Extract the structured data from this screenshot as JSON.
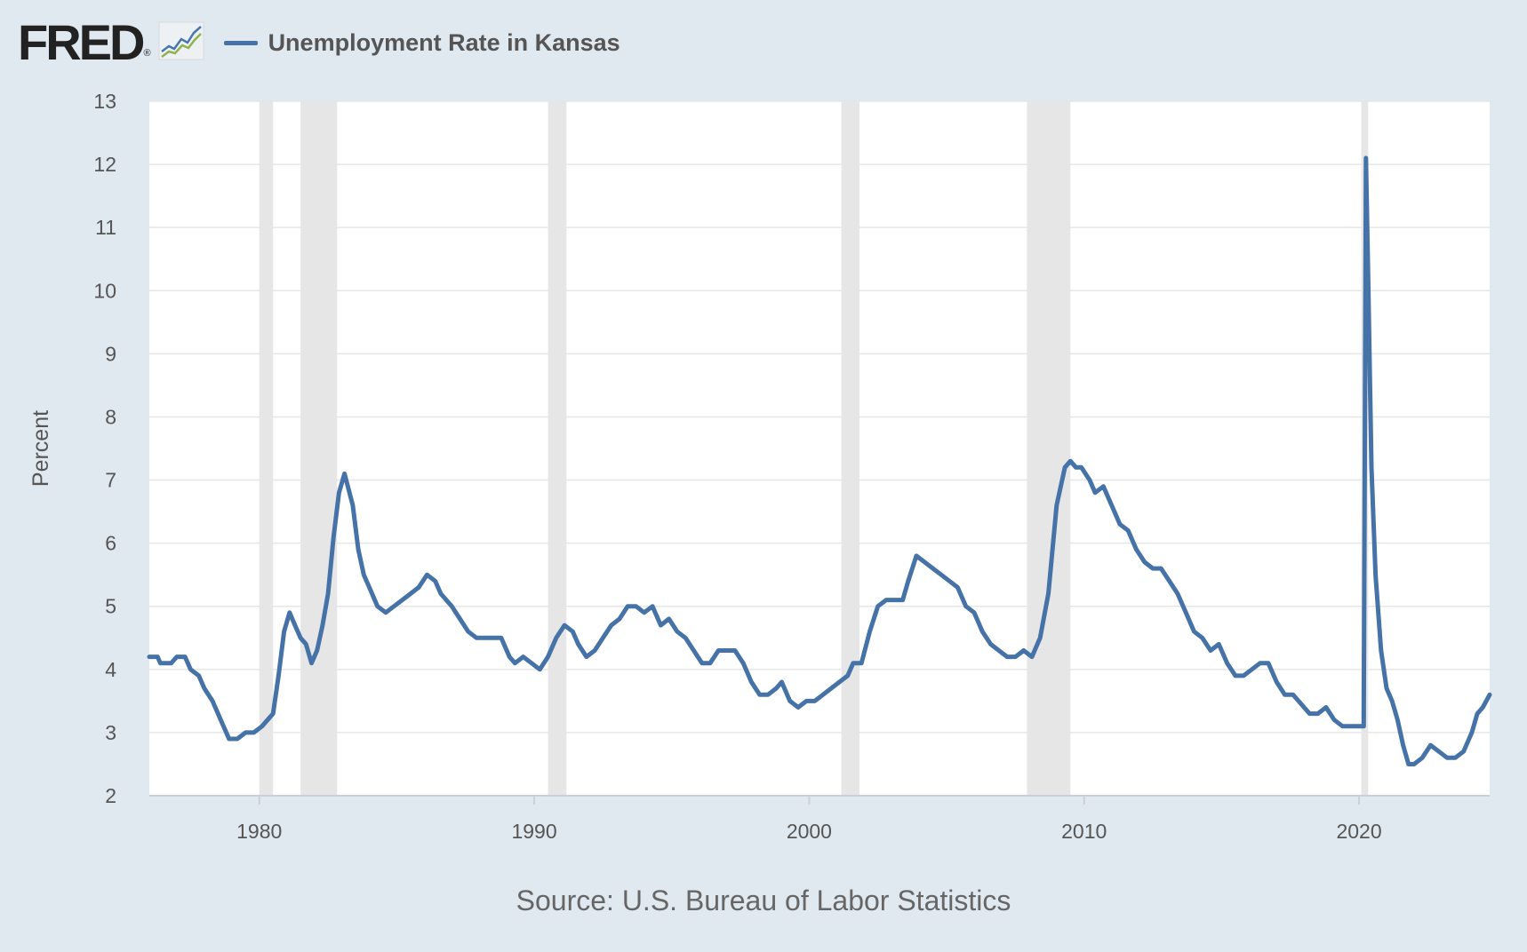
{
  "header": {
    "logo_text": "FRED",
    "logo_mark": "®",
    "logo_icon": "line-chart-icon",
    "legend_label": "Unemployment Rate in Kansas"
  },
  "source": "Source: U.S. Bureau of Labor Statistics",
  "colors": {
    "series": "#4572a7",
    "background": "#e1e9f0",
    "plot": "#ffffff",
    "recession": "#e6e6e6",
    "grid": "#e6e6e6"
  },
  "chart_data": {
    "type": "line",
    "title": "",
    "xlabel": "",
    "ylabel": "Percent",
    "xlim": [
      1976.0,
      2024.75
    ],
    "ylim": [
      2,
      13
    ],
    "yticks": [
      2,
      3,
      4,
      5,
      6,
      7,
      8,
      9,
      10,
      11,
      12,
      13
    ],
    "xticks": [
      1980,
      1990,
      2000,
      2010,
      2020
    ],
    "grid": true,
    "legend": "top-left",
    "recessions": [
      [
        1980.0,
        1980.5
      ],
      [
        1981.5,
        1982.83
      ],
      [
        1990.5,
        1991.17
      ],
      [
        2001.17,
        2001.83
      ],
      [
        2007.92,
        2009.5
      ],
      [
        2020.08,
        2020.33
      ]
    ],
    "series": [
      {
        "name": "Unemployment Rate in Kansas",
        "x": [
          1976.0,
          1976.3,
          1976.4,
          1976.8,
          1977.0,
          1977.3,
          1977.5,
          1977.8,
          1978.0,
          1978.3,
          1978.6,
          1978.9,
          1979.2,
          1979.5,
          1979.8,
          1980.1,
          1980.3,
          1980.5,
          1980.7,
          1980.9,
          1981.1,
          1981.3,
          1981.5,
          1981.7,
          1981.9,
          1982.1,
          1982.3,
          1982.5,
          1982.7,
          1982.9,
          1983.1,
          1983.4,
          1983.6,
          1983.8,
          1984.0,
          1984.3,
          1984.6,
          1984.9,
          1985.2,
          1985.5,
          1985.8,
          1986.1,
          1986.4,
          1986.6,
          1986.8,
          1987.0,
          1987.3,
          1987.6,
          1987.9,
          1988.2,
          1988.5,
          1988.8,
          1989.1,
          1989.3,
          1989.6,
          1989.9,
          1990.2,
          1990.5,
          1990.8,
          1991.1,
          1991.4,
          1991.6,
          1991.9,
          1992.2,
          1992.5,
          1992.8,
          1993.1,
          1993.4,
          1993.7,
          1994.0,
          1994.3,
          1994.6,
          1994.9,
          1995.2,
          1995.5,
          1995.8,
          1996.1,
          1996.4,
          1996.7,
          1997.0,
          1997.3,
          1997.6,
          1997.9,
          1998.2,
          1998.5,
          1998.8,
          1999.0,
          1999.3,
          1999.6,
          1999.9,
          2000.2,
          2000.5,
          2000.8,
          2001.1,
          2001.4,
          2001.6,
          2001.9,
          2002.2,
          2002.5,
          2002.8,
          2003.1,
          2003.4,
          2003.6,
          2003.9,
          2004.2,
          2004.5,
          2004.8,
          2005.1,
          2005.4,
          2005.7,
          2006.0,
          2006.3,
          2006.6,
          2006.9,
          2007.2,
          2007.5,
          2007.8,
          2008.1,
          2008.4,
          2008.7,
          2009.0,
          2009.3,
          2009.5,
          2009.7,
          2009.9,
          2010.2,
          2010.4,
          2010.7,
          2011.0,
          2011.3,
          2011.6,
          2011.9,
          2012.2,
          2012.5,
          2012.8,
          2013.1,
          2013.4,
          2013.7,
          2014.0,
          2014.3,
          2014.6,
          2014.9,
          2015.2,
          2015.5,
          2015.8,
          2016.1,
          2016.4,
          2016.7,
          2017.0,
          2017.3,
          2017.6,
          2017.8,
          2018.0,
          2018.2,
          2018.5,
          2018.8,
          2019.1,
          2019.4,
          2019.7,
          2020.0,
          2020.17,
          2020.25,
          2020.33,
          2020.45,
          2020.6,
          2020.8,
          2021.0,
          2021.2,
          2021.4,
          2021.6,
          2021.8,
          2022.0,
          2022.3,
          2022.6,
          2022.9,
          2023.2,
          2023.5,
          2023.8,
          2024.1,
          2024.3,
          2024.5,
          2024.75
        ],
        "y": [
          4.2,
          4.2,
          4.1,
          4.1,
          4.2,
          4.2,
          4.0,
          3.9,
          3.7,
          3.5,
          3.2,
          2.9,
          2.9,
          3.0,
          3.0,
          3.1,
          3.2,
          3.3,
          3.9,
          4.6,
          4.9,
          4.7,
          4.5,
          4.4,
          4.1,
          4.3,
          4.7,
          5.2,
          6.1,
          6.8,
          7.1,
          6.6,
          5.9,
          5.5,
          5.3,
          5.0,
          4.9,
          5.0,
          5.1,
          5.2,
          5.3,
          5.5,
          5.4,
          5.2,
          5.1,
          5.0,
          4.8,
          4.6,
          4.5,
          4.5,
          4.5,
          4.5,
          4.2,
          4.1,
          4.2,
          4.1,
          4.0,
          4.2,
          4.5,
          4.7,
          4.6,
          4.4,
          4.2,
          4.3,
          4.5,
          4.7,
          4.8,
          5.0,
          5.0,
          4.9,
          5.0,
          4.7,
          4.8,
          4.6,
          4.5,
          4.3,
          4.1,
          4.1,
          4.3,
          4.3,
          4.3,
          4.1,
          3.8,
          3.6,
          3.6,
          3.7,
          3.8,
          3.5,
          3.4,
          3.5,
          3.5,
          3.6,
          3.7,
          3.8,
          3.9,
          4.1,
          4.1,
          4.6,
          5.0,
          5.1,
          5.1,
          5.1,
          5.4,
          5.8,
          5.7,
          5.6,
          5.5,
          5.4,
          5.3,
          5.0,
          4.9,
          4.6,
          4.4,
          4.3,
          4.2,
          4.2,
          4.3,
          4.2,
          4.5,
          5.2,
          6.6,
          7.2,
          7.3,
          7.2,
          7.2,
          7.0,
          6.8,
          6.9,
          6.6,
          6.3,
          6.2,
          5.9,
          5.7,
          5.6,
          5.6,
          5.4,
          5.2,
          4.9,
          4.6,
          4.5,
          4.3,
          4.4,
          4.1,
          3.9,
          3.9,
          4.0,
          4.1,
          4.1,
          3.8,
          3.6,
          3.6,
          3.5,
          3.4,
          3.3,
          3.3,
          3.4,
          3.2,
          3.1,
          3.1,
          3.1,
          3.1,
          12.1,
          10.2,
          7.2,
          5.5,
          4.3,
          3.7,
          3.5,
          3.2,
          2.8,
          2.5,
          2.5,
          2.6,
          2.8,
          2.7,
          2.6,
          2.6,
          2.7,
          3.0,
          3.3,
          3.4,
          3.6
        ]
      }
    ]
  }
}
